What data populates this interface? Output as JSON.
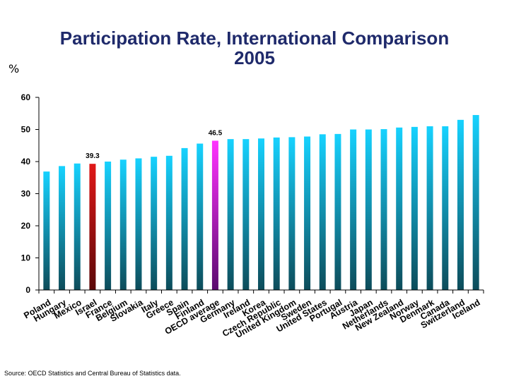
{
  "title_line1": "Participation Rate, International Comparison",
  "title_line2": "2005",
  "unit_label": "%",
  "source": "Source: OECD Statistics and Central Bureau of Statistics data.",
  "colors": {
    "default_top": "#16d2ff",
    "default_bottom": "#0d4c5a",
    "israel_top": "#e01818",
    "israel_bottom": "#5a0808",
    "oecd_top": "#ff33ff",
    "oecd_bottom": "#5a0a6e"
  },
  "chart_data": {
    "type": "bar",
    "title": "Participation Rate, International Comparison 2005",
    "xlabel": "",
    "ylabel": "%",
    "ylim": [
      0,
      60
    ],
    "yticks": [
      0,
      10,
      20,
      30,
      40,
      50,
      60
    ],
    "categories": [
      "Poland",
      "Hungary",
      "Mexico",
      "Israel",
      "France",
      "Belgium",
      "Slovakia",
      "Italy",
      "Greece",
      "Spain",
      "Finland",
      "OECD average",
      "Germany",
      "Ireland",
      "Korea",
      "Czech Republic",
      "United Kingdom",
      "Sweden",
      "United States",
      "Portugal",
      "Austria",
      "Japan",
      "Netherlands",
      "New Zealand",
      "Norway",
      "Denmark",
      "Canada",
      "Switzerland",
      "Iceland"
    ],
    "values": [
      36.9,
      38.6,
      39.4,
      39.3,
      40.0,
      40.6,
      41.0,
      41.5,
      41.8,
      44.2,
      45.6,
      46.5,
      47.0,
      47.0,
      47.2,
      47.5,
      47.6,
      47.8,
      48.5,
      48.6,
      50.0,
      50.0,
      50.1,
      50.6,
      50.8,
      51.0,
      51.0,
      53.0,
      54.5
    ],
    "highlights": {
      "Israel": "israel",
      "OECD average": "oecd"
    },
    "data_labels": [
      {
        "category": "Israel",
        "text": "39.3"
      },
      {
        "category": "OECD average",
        "text": "46.5"
      }
    ],
    "grid": false,
    "legend": "none"
  }
}
